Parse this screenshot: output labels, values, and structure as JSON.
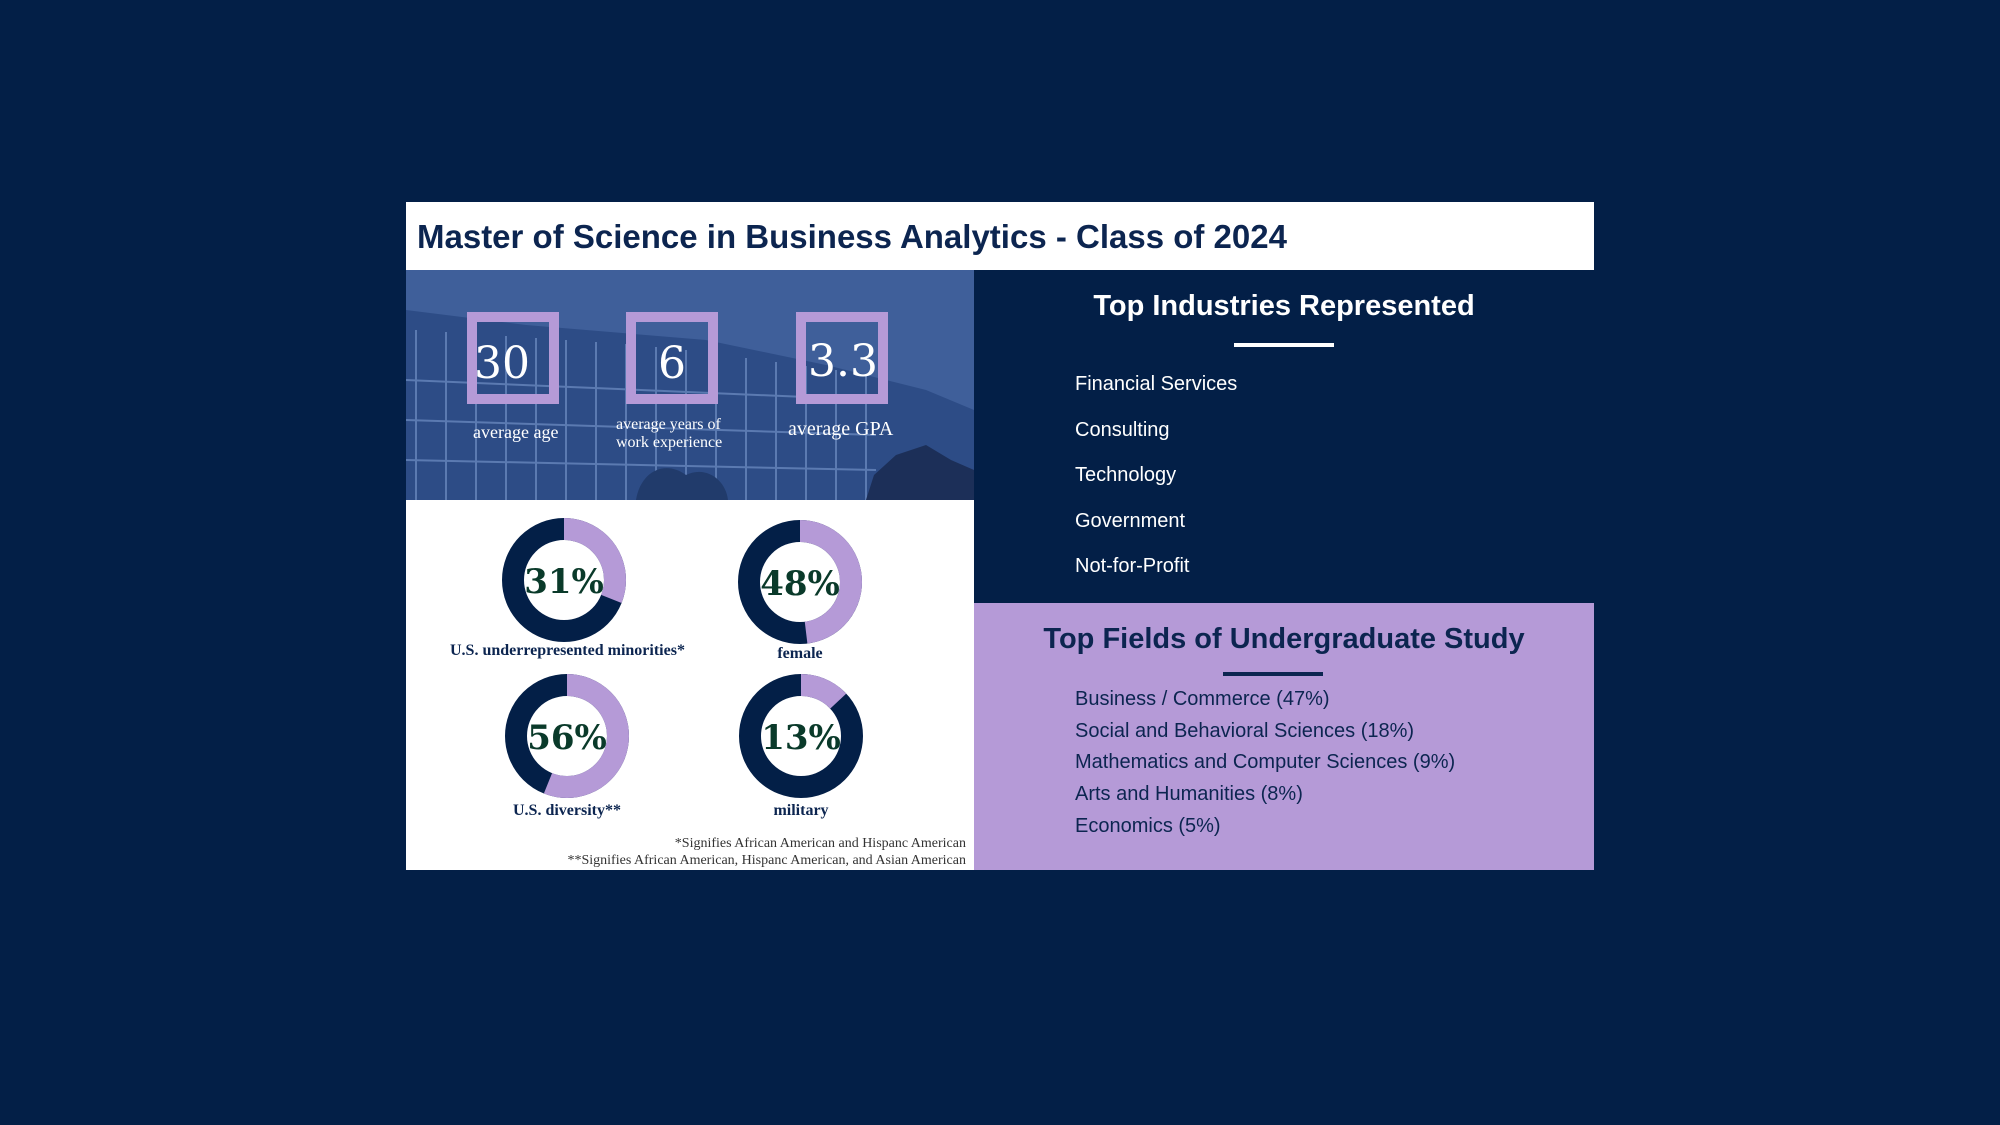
{
  "title": "Master of Science in Business Analytics - Class of 2024",
  "colors": {
    "navy": "#031f47",
    "lavender": "#b59ad7",
    "white": "#ffffff"
  },
  "stats": [
    {
      "value": "30",
      "label": "average age"
    },
    {
      "value": "6",
      "label": "average years of work experience"
    },
    {
      "value": "3.3",
      "label": "average GPA"
    }
  ],
  "demographics": [
    {
      "percent": 31,
      "display": "31%",
      "label": "U.S. underrepresented minorities*"
    },
    {
      "percent": 48,
      "display": "48%",
      "label": "female"
    },
    {
      "percent": 56,
      "display": "56%",
      "label": "U.S. diversity**"
    },
    {
      "percent": 13,
      "display": "13%",
      "label": "military"
    }
  ],
  "footnotes": [
    "*Signifies African American and Hispanc American",
    "**Signifies African American, Hispanc American, and Asian American"
  ],
  "industries": {
    "heading": "Top Industries Represented",
    "items": [
      "Financial Services",
      "Consulting",
      "Technology",
      "Government",
      "Not-for-Profit"
    ]
  },
  "fields": {
    "heading": "Top Fields of Undergraduate Study",
    "items": [
      "Business / Commerce (47%)",
      "Social and Behavioral Sciences (18%)",
      "Mathematics and Computer Sciences (9%)",
      "Arts and Humanities (8%)",
      "Economics (5%)"
    ]
  }
}
